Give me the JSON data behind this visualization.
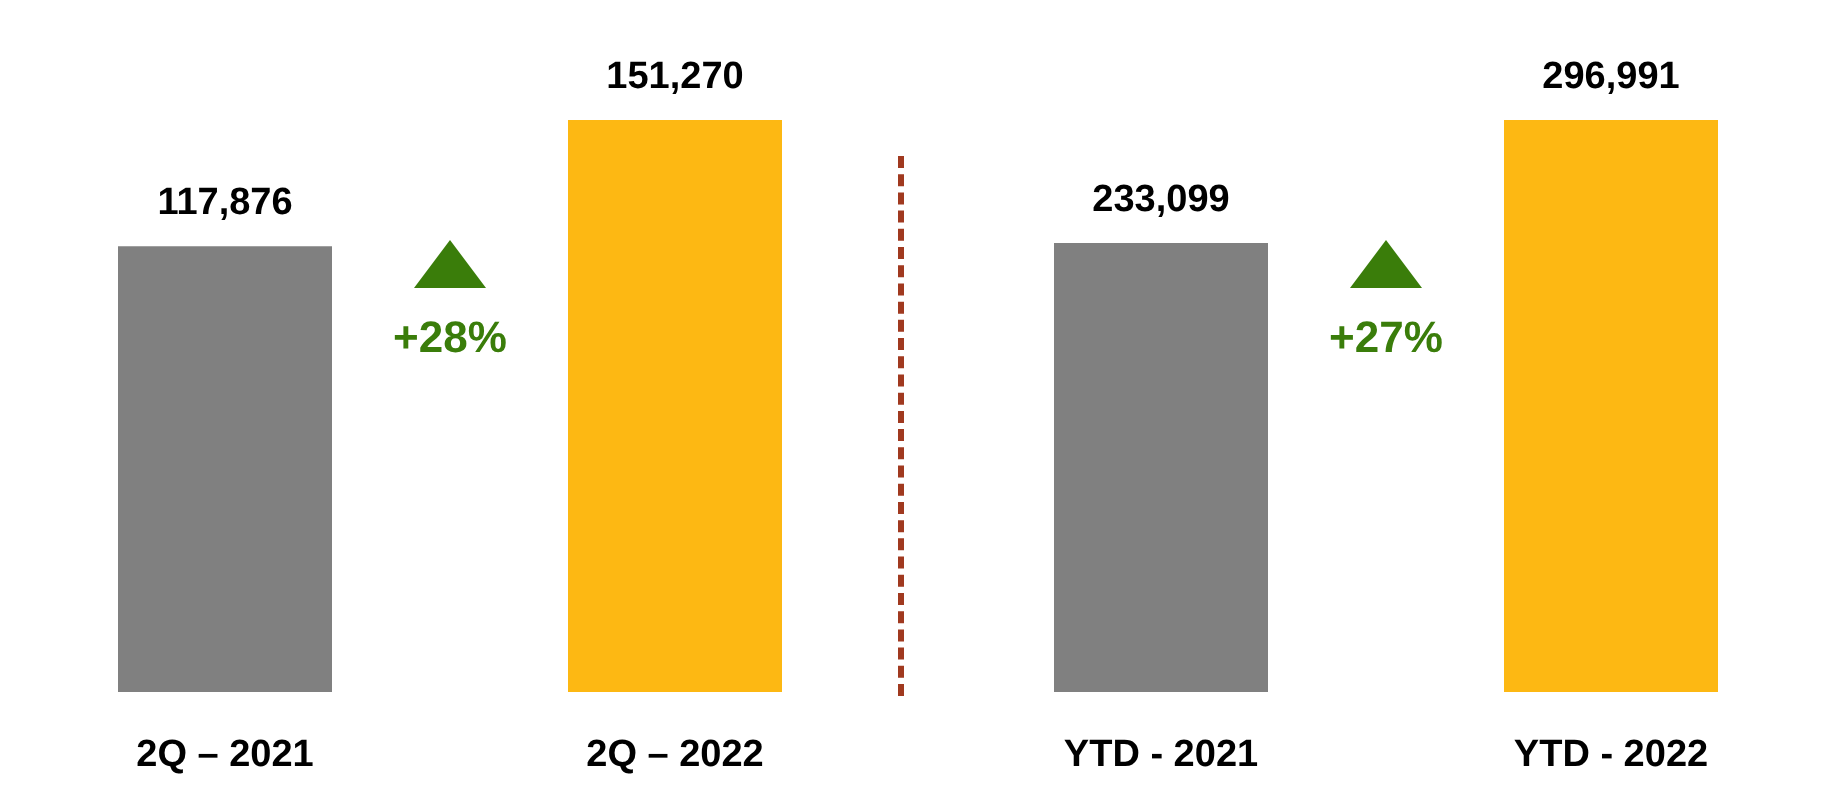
{
  "chart_data": [
    {
      "type": "bar",
      "categories": [
        "2Q – 2021",
        "2Q – 2022"
      ],
      "values": [
        117876,
        151270
      ],
      "value_labels": [
        "117,876",
        "151,270"
      ],
      "colors": [
        "#808080",
        "#fdb813"
      ],
      "annotations": [
        "+28%"
      ]
    },
    {
      "type": "bar",
      "categories": [
        "YTD - 2021",
        "YTD - 2022"
      ],
      "values": [
        233099,
        296991
      ],
      "value_labels": [
        "233,099",
        "296,991"
      ],
      "colors": [
        "#808080",
        "#fdb813"
      ],
      "annotations": [
        "+27%"
      ]
    }
  ]
}
